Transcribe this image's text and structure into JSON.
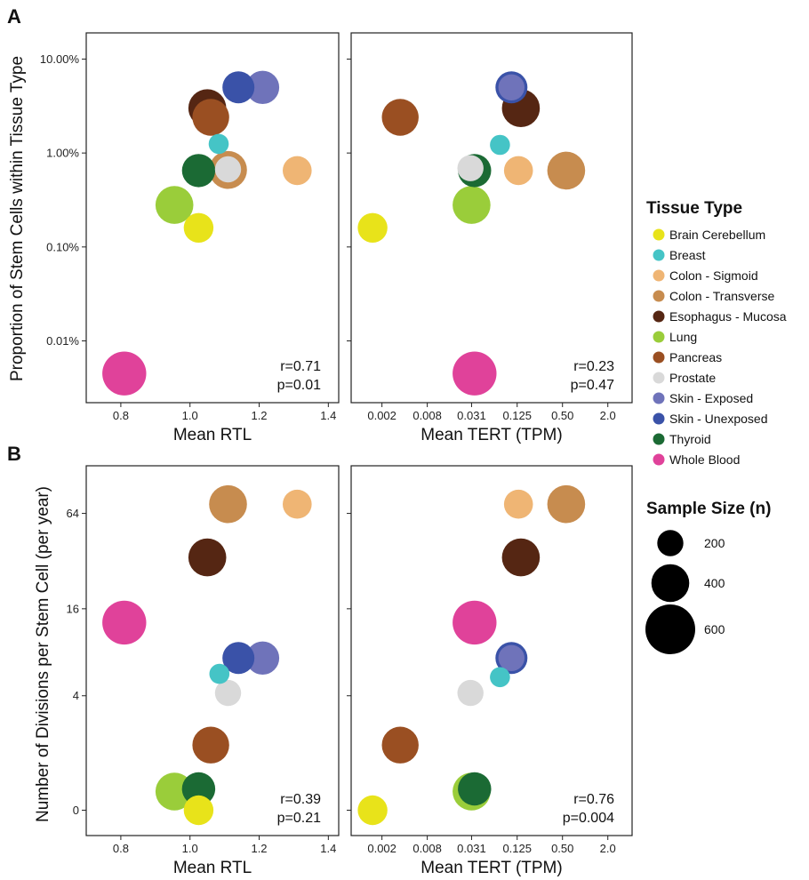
{
  "panels": {
    "A": {
      "letter": "A",
      "ylabel": "Proportion of Stem Cells within Tissue Type"
    },
    "B": {
      "letter": "B",
      "ylabel": "Number of Divisions per Stem Cell (per year)"
    }
  },
  "legend": {
    "tissue_title": "Tissue Type",
    "size_title": "Sample Size (n)",
    "tissues": [
      {
        "name": "Brain Cerebellum",
        "color": "#e8e31a"
      },
      {
        "name": "Breast",
        "color": "#45c4c6"
      },
      {
        "name": "Colon - Sigmoid",
        "color": "#efb574"
      },
      {
        "name": "Colon - Transverse",
        "color": "#c78c4f"
      },
      {
        "name": "Esophagus  -  Mucosa",
        "color": "#552613"
      },
      {
        "name": "Lung",
        "color": "#9acd3a"
      },
      {
        "name": "Pancreas",
        "color": "#9a4f22"
      },
      {
        "name": "Prostate",
        "color": "#d9d9d9"
      },
      {
        "name": "Skin - Exposed",
        "color": "#6f73ba"
      },
      {
        "name": "Skin - Unexposed",
        "color": "#3a52a8"
      },
      {
        "name": "Thyroid",
        "color": "#1b6a34"
      },
      {
        "name": "Whole Blood",
        "color": "#e0429a"
      }
    ],
    "sizes": [
      {
        "n": 200,
        "label": "200"
      },
      {
        "n": 400,
        "label": "400"
      },
      {
        "n": 600,
        "label": "600"
      }
    ]
  },
  "chart_data": [
    {
      "id": "A-RTL",
      "type": "scatter",
      "xlabel": "Mean RTL",
      "ylabel": "Proportion of Stem Cells within Tissue Type",
      "x_scale": "linear",
      "y_scale": "log",
      "xlim": [
        0.7,
        1.43
      ],
      "ylim": [
        0.0022,
        19
      ],
      "xticks": [
        0.8,
        1.0,
        1.2,
        1.4
      ],
      "xtick_labels": [
        "0.8",
        "1.0",
        "1.2",
        "1.4"
      ],
      "yticks": [
        0.01,
        0.1,
        1,
        10
      ],
      "ytick_labels": [
        "0.01%",
        "0.10%",
        "1.00%",
        "10.00%"
      ],
      "grid": false,
      "annotation": [
        "r=0.71",
        "p=0.01"
      ],
      "points": [
        {
          "tissue": "Brain Cerebellum",
          "x": 1.025,
          "y": 0.16,
          "n": 260
        },
        {
          "tissue": "Breast",
          "x": 1.083,
          "y": 1.25,
          "n": 100
        },
        {
          "tissue": "Colon - Sigmoid",
          "x": 1.31,
          "y": 0.65,
          "n": 250
        },
        {
          "tissue": "Colon - Transverse",
          "x": 1.11,
          "y": 0.66,
          "n": 400
        },
        {
          "tissue": "Esophagus  -  Mucosa",
          "x": 1.05,
          "y": 3.0,
          "n": 400
        },
        {
          "tissue": "Lung",
          "x": 0.955,
          "y": 0.28,
          "n": 400
        },
        {
          "tissue": "Pancreas",
          "x": 1.06,
          "y": 2.4,
          "n": 380
        },
        {
          "tissue": "Prostate",
          "x": 1.11,
          "y": 0.67,
          "n": 200
        },
        {
          "tissue": "Skin - Exposed",
          "x": 1.21,
          "y": 5.0,
          "n": 320
        },
        {
          "tissue": "Skin - Unexposed",
          "x": 1.14,
          "y": 5.0,
          "n": 300
        },
        {
          "tissue": "Thyroid",
          "x": 1.025,
          "y": 0.65,
          "n": 320
        },
        {
          "tissue": "Whole Blood",
          "x": 0.81,
          "y": 0.0045,
          "n": 500
        }
      ]
    },
    {
      "id": "A-TERT",
      "type": "scatter",
      "xlabel": "Mean TERT (TPM)",
      "ylabel": "",
      "x_scale": "log2",
      "y_scale": "log",
      "xlim": [
        0.00078,
        4.2
      ],
      "ylim": [
        0.0022,
        19
      ],
      "xticks": [
        0.002,
        0.008,
        0.031,
        0.125,
        0.5,
        2.0
      ],
      "xtick_labels": [
        "0.002",
        "0.008",
        "0.031",
        "0.125",
        "0.50",
        "2.0"
      ],
      "yticks": [
        0.01,
        0.1,
        1,
        10
      ],
      "ytick_labels": [
        "",
        "",
        "",
        ""
      ],
      "grid": false,
      "annotation": [
        "r=0.23",
        "p=0.47"
      ],
      "points": [
        {
          "tissue": "Brain Cerebellum",
          "x": 0.0015,
          "y": 0.16,
          "n": 260
        },
        {
          "tissue": "Breast",
          "x": 0.074,
          "y": 1.22,
          "n": 100
        },
        {
          "tissue": "Colon - Sigmoid",
          "x": 0.13,
          "y": 0.65,
          "n": 250
        },
        {
          "tissue": "Colon - Transverse",
          "x": 0.56,
          "y": 0.65,
          "n": 400
        },
        {
          "tissue": "Esophagus  -  Mucosa",
          "x": 0.14,
          "y": 3.0,
          "n": 400
        },
        {
          "tissue": "Lung",
          "x": 0.031,
          "y": 0.28,
          "n": 400
        },
        {
          "tissue": "Pancreas",
          "x": 0.0035,
          "y": 2.4,
          "n": 380
        },
        {
          "tissue": "Prostate",
          "x": 0.03,
          "y": 0.69,
          "n": 200
        },
        {
          "tissue": "Skin - Exposed",
          "x": 0.105,
          "y": 5.0,
          "n": 200
        },
        {
          "tissue": "Skin - Unexposed",
          "x": 0.105,
          "y": 5.0,
          "n": 300
        },
        {
          "tissue": "Thyroid",
          "x": 0.034,
          "y": 0.65,
          "n": 320
        },
        {
          "tissue": "Whole Blood",
          "x": 0.034,
          "y": 0.0045,
          "n": 500
        }
      ]
    },
    {
      "id": "B-RTL",
      "type": "scatter",
      "xlabel": "Mean RTL",
      "ylabel": "Number of Divisions per Stem Cell (per year)",
      "x_scale": "linear",
      "y_scale": "log2(1+y)",
      "xlim": [
        0.7,
        1.43
      ],
      "ylim": [
        -0.3,
        126
      ],
      "xticks": [
        0.8,
        1.0,
        1.2,
        1.4
      ],
      "xtick_labels": [
        "0.8",
        "1.0",
        "1.2",
        "1.4"
      ],
      "yticks": [
        0,
        4,
        16,
        64
      ],
      "ytick_labels": [
        "0",
        "4",
        "16",
        "64"
      ],
      "grid": false,
      "annotation": [
        "r=0.39",
        "p=0.21"
      ],
      "points": [
        {
          "tissue": "Brain Cerebellum",
          "x": 1.025,
          "y": 0.0,
          "n": 260
        },
        {
          "tissue": "Breast",
          "x": 1.085,
          "y": 5.8,
          "n": 100
        },
        {
          "tissue": "Colon - Sigmoid",
          "x": 1.31,
          "y": 73,
          "n": 250
        },
        {
          "tissue": "Colon - Transverse",
          "x": 1.11,
          "y": 73,
          "n": 400
        },
        {
          "tissue": "Esophagus  -  Mucosa",
          "x": 1.05,
          "y": 34,
          "n": 400
        },
        {
          "tissue": "Lung",
          "x": 0.955,
          "y": 0.3,
          "n": 400
        },
        {
          "tissue": "Pancreas",
          "x": 1.06,
          "y": 1.5,
          "n": 380
        },
        {
          "tissue": "Prostate",
          "x": 1.11,
          "y": 4.2,
          "n": 200
        },
        {
          "tissue": "Skin - Exposed",
          "x": 1.21,
          "y": 7.5,
          "n": 320
        },
        {
          "tissue": "Skin - Unexposed",
          "x": 1.14,
          "y": 7.5,
          "n": 300
        },
        {
          "tissue": "Thyroid",
          "x": 1.025,
          "y": 0.35,
          "n": 320
        },
        {
          "tissue": "Whole Blood",
          "x": 0.81,
          "y": 13,
          "n": 500
        }
      ]
    },
    {
      "id": "B-TERT",
      "type": "scatter",
      "xlabel": "Mean TERT (TPM)",
      "ylabel": "",
      "x_scale": "log2",
      "y_scale": "log2(1+y)",
      "xlim": [
        0.00078,
        4.2
      ],
      "ylim": [
        -0.3,
        126
      ],
      "xticks": [
        0.002,
        0.008,
        0.031,
        0.125,
        0.5,
        2.0
      ],
      "xtick_labels": [
        "0.002",
        "0.008",
        "0.031",
        "0.125",
        "0.50",
        "2.0"
      ],
      "yticks": [
        0,
        4,
        16,
        64
      ],
      "ytick_labels": [
        "",
        "",
        "",
        ""
      ],
      "grid": false,
      "annotation": [
        "r=0.76",
        "p=0.004"
      ],
      "points": [
        {
          "tissue": "Brain Cerebellum",
          "x": 0.0015,
          "y": 0.0,
          "n": 260
        },
        {
          "tissue": "Breast",
          "x": 0.074,
          "y": 5.5,
          "n": 100
        },
        {
          "tissue": "Colon - Sigmoid",
          "x": 0.13,
          "y": 73,
          "n": 250
        },
        {
          "tissue": "Colon - Transverse",
          "x": 0.56,
          "y": 73,
          "n": 400
        },
        {
          "tissue": "Esophagus  -  Mucosa",
          "x": 0.14,
          "y": 34,
          "n": 400
        },
        {
          "tissue": "Lung",
          "x": 0.031,
          "y": 0.3,
          "n": 400
        },
        {
          "tissue": "Pancreas",
          "x": 0.0035,
          "y": 1.5,
          "n": 380
        },
        {
          "tissue": "Prostate",
          "x": 0.03,
          "y": 4.2,
          "n": 200
        },
        {
          "tissue": "Skin - Exposed",
          "x": 0.105,
          "y": 7.5,
          "n": 200
        },
        {
          "tissue": "Skin - Unexposed",
          "x": 0.105,
          "y": 7.5,
          "n": 300
        },
        {
          "tissue": "Thyroid",
          "x": 0.034,
          "y": 0.35,
          "n": 320
        },
        {
          "tissue": "Whole Blood",
          "x": 0.034,
          "y": 13,
          "n": 500
        }
      ]
    }
  ]
}
